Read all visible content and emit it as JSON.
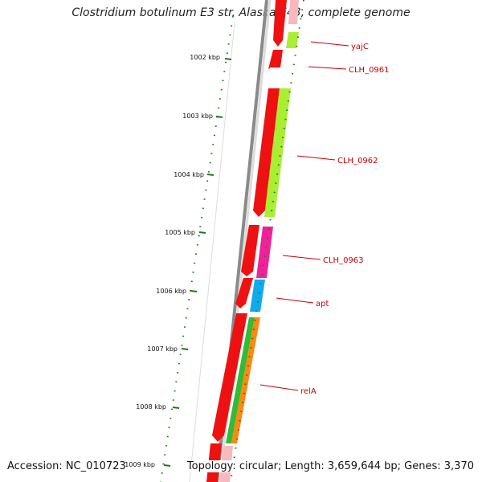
{
  "title": "Clostridium botulinum E3 str. Alaska E43, complete genome",
  "footer": {
    "accession": "Accession: NC_010723",
    "summary": "Topology: circular; Length: 3,659,644 bp; Genes: 3,370"
  },
  "ruler": {
    "labels": [
      "1002 kbp",
      "1003 kbp",
      "1004 kbp",
      "1005 kbp",
      "1006 kbp",
      "1007 kbp",
      "1008 kbp",
      "1009 kbp"
    ]
  },
  "genes": [
    {
      "name": "yajC"
    },
    {
      "name": "CLH_0961"
    },
    {
      "name": "CLH_0962"
    },
    {
      "name": "CLH_0963"
    },
    {
      "name": "apt"
    },
    {
      "name": "relA"
    }
  ],
  "colors": {
    "reverse_cds": "#ee1111",
    "forward_cds": "#ee1111",
    "lime_feature": "#aaee33",
    "pink_feature": "#ee2299",
    "blue_feature": "#11aaee",
    "green_feature": "#33bb33",
    "orange_feature": "#ff8811",
    "ruler": "#1a7a1a",
    "backbone": "#888888",
    "label": "#cc0000"
  }
}
